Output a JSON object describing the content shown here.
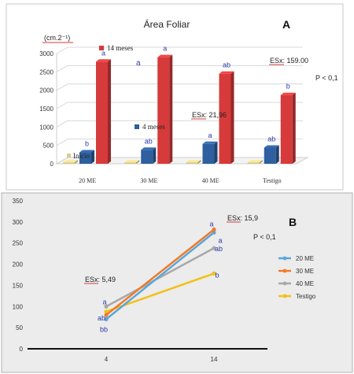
{
  "chart_data": [
    {
      "panel": "A",
      "type": "bar",
      "title": "Área Foliar",
      "ylabel": "(cm.2⁻¹)",
      "xlabel": "",
      "ylim": [
        0,
        3000
      ],
      "yticks": [
        0,
        500,
        1000,
        1500,
        2000,
        2500,
        3000
      ],
      "categories": [
        "20 ME",
        "30 ME",
        "40 ME",
        "Testigo"
      ],
      "series": [
        {
          "name": "Inicio",
          "color": "#d8cc8a",
          "values": [
            40,
            40,
            40,
            40
          ],
          "letters": [
            "",
            "",
            "",
            ""
          ]
        },
        {
          "name": "4 meses",
          "color": "#2e5f9e",
          "values": [
            310,
            380,
            540,
            440
          ],
          "letters": [
            "b",
            "ab",
            "a",
            "ab"
          ]
        },
        {
          "name": "14 meses",
          "color": "#d63a3a",
          "values": [
            2780,
            2900,
            2450,
            1870
          ],
          "letters": [
            "a",
            "a",
            "ab",
            "b"
          ]
        }
      ],
      "annotations": {
        "esx_4": "ESx: 21,96",
        "esx_14": "ESx: 159.00",
        "pvalue": "P < 0,1",
        "extra_letter": "a"
      },
      "grid": true,
      "legend": "inline"
    },
    {
      "panel": "B",
      "type": "line",
      "x": [
        "4",
        "14"
      ],
      "ylim": [
        0,
        350
      ],
      "yticks": [
        0,
        50,
        100,
        150,
        200,
        250,
        300,
        350
      ],
      "xlabel": "",
      "ylabel": "",
      "series": [
        {
          "name": "20 ME",
          "color": "#5aa7d9",
          "values": [
            70,
            275
          ],
          "letters": [
            "bb",
            "a"
          ]
        },
        {
          "name": "30 ME",
          "color": "#f07a2a",
          "values": [
            80,
            282
          ],
          "letters": [
            "ab",
            "a"
          ]
        },
        {
          "name": "40 ME",
          "color": "#a8a8a8",
          "values": [
            100,
            238
          ],
          "letters": [
            "a",
            "ab"
          ]
        },
        {
          "name": "Testigo",
          "color": "#f3c019",
          "values": [
            88,
            178
          ],
          "letters": [
            "",
            "b"
          ]
        }
      ],
      "annotations": {
        "esx_4": "ESx: 5,49",
        "esx_14": "ESx: 15,9",
        "pvalue": "P < 0,1"
      },
      "grid": false,
      "legend": "right"
    }
  ],
  "labels": {
    "panel_a": "A",
    "panel_b": "B"
  }
}
